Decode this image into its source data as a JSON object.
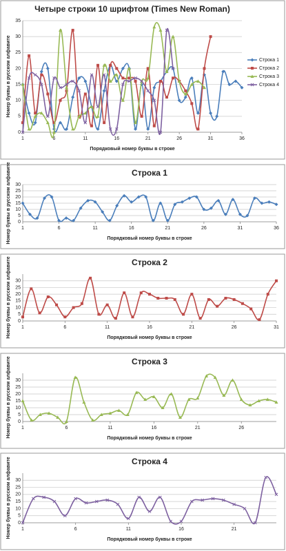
{
  "chart_data": [
    {
      "type": "line",
      "title": "Четыре строки 10 шрифтом (Times New Roman)",
      "x_label": "Порядковый номер буквы в строке",
      "y_label": "Номер буквы в русском алфавите",
      "xlim": [
        1,
        36
      ],
      "xticks": [
        1,
        6,
        11,
        16,
        21,
        26,
        31,
        36
      ],
      "ylim": [
        0,
        35
      ],
      "yticks": [
        0,
        5,
        10,
        15,
        20,
        25,
        30,
        35
      ],
      "grid": true,
      "legend": "right",
      "series": [
        {
          "name": "Строка 1",
          "color": "#4a7ebb",
          "marker": "diamond",
          "x": [
            1,
            2,
            3,
            4,
            5,
            6,
            7,
            8,
            9,
            10,
            11,
            12,
            13,
            14,
            15,
            16,
            17,
            18,
            19,
            20,
            21,
            22,
            23,
            24,
            25,
            26,
            27,
            28,
            29,
            30,
            31,
            32,
            33,
            34,
            35,
            36
          ],
          "values": [
            15,
            6,
            3,
            19,
            20,
            1,
            3,
            1,
            11,
            17,
            16,
            8,
            1,
            13,
            21,
            16,
            20,
            20,
            1,
            15,
            1,
            14,
            16,
            19,
            20,
            10,
            11,
            17,
            6,
            18,
            6,
            5,
            19,
            15,
            16,
            14
          ]
        },
        {
          "name": "Строка 2",
          "color": "#be4b48",
          "marker": "square",
          "x": [
            1,
            2,
            3,
            4,
            5,
            6,
            7,
            8,
            9,
            10,
            11,
            12,
            13,
            14,
            15,
            16,
            17,
            18,
            19,
            20,
            21,
            22,
            23,
            24,
            25,
            26,
            27,
            28,
            29,
            30,
            31
          ],
          "values": [
            3,
            24,
            6,
            18,
            12,
            3,
            10,
            13,
            32,
            5,
            12,
            2,
            21,
            3,
            21,
            20,
            17,
            17,
            16,
            5,
            20,
            2,
            16,
            11,
            17,
            16,
            13,
            9,
            1,
            20,
            30
          ]
        },
        {
          "name": "Строка 3",
          "color": "#98b954",
          "marker": "triangle",
          "x": [
            1,
            2,
            3,
            4,
            5,
            6,
            7,
            8,
            9,
            10,
            11,
            12,
            13,
            14,
            15,
            16,
            17,
            18,
            19,
            20,
            21,
            22,
            23,
            24,
            25,
            26,
            27,
            28,
            29,
            30
          ],
          "values": [
            15,
            1,
            5,
            6,
            3,
            0,
            32,
            14,
            1,
            5,
            6,
            8,
            5,
            21,
            16,
            18,
            10,
            20,
            3,
            16,
            17,
            33,
            32,
            19,
            30,
            16,
            12,
            15,
            16,
            14
          ]
        },
        {
          "name": "Строка 4",
          "color": "#7d60a0",
          "marker": "cross",
          "x": [
            1,
            2,
            3,
            4,
            5,
            6,
            7,
            8,
            9,
            10,
            11,
            12,
            13,
            14,
            15,
            16,
            17,
            18,
            19,
            20,
            21,
            22,
            23,
            24,
            25
          ],
          "values": [
            0,
            17,
            18,
            15,
            5,
            17,
            14,
            15,
            16,
            13,
            3,
            18,
            8,
            18,
            1,
            1,
            15,
            16,
            17,
            16,
            13,
            10,
            0,
            32,
            20
          ]
        }
      ]
    },
    {
      "type": "line",
      "title": "Строка 1",
      "x_label": "Порядковый номер буквы в строке",
      "y_label": "Номер буквы в русском алфавите",
      "xlim": [
        1,
        36
      ],
      "xticks": [
        1,
        6,
        11,
        16,
        21,
        26,
        31,
        36
      ],
      "ylim": [
        0,
        30
      ],
      "yticks": [
        0,
        5,
        10,
        15,
        20,
        25,
        30
      ],
      "grid": true,
      "color": "#4a7ebb",
      "marker": "diamond",
      "x": [
        1,
        2,
        3,
        4,
        5,
        6,
        7,
        8,
        9,
        10,
        11,
        12,
        13,
        14,
        15,
        16,
        17,
        18,
        19,
        20,
        21,
        22,
        23,
        24,
        25,
        26,
        27,
        28,
        29,
        30,
        31,
        32,
        33,
        34,
        35,
        36
      ],
      "values": [
        15,
        6,
        3,
        19,
        20,
        1,
        3,
        1,
        11,
        17,
        16,
        8,
        1,
        13,
        21,
        16,
        20,
        20,
        1,
        15,
        1,
        14,
        16,
        19,
        20,
        10,
        11,
        17,
        6,
        18,
        6,
        5,
        19,
        15,
        16,
        14
      ]
    },
    {
      "type": "line",
      "title": "Строка 2",
      "x_label": "Порядковый номер буквы в строке",
      "y_label": "Номер буквы в русском алфавите",
      "xlim": [
        1,
        31
      ],
      "xticks": [
        1,
        6,
        11,
        16,
        21,
        26,
        31
      ],
      "ylim": [
        0,
        35
      ],
      "yticks": [
        0,
        5,
        10,
        15,
        20,
        25,
        30
      ],
      "grid": true,
      "color": "#be4b48",
      "marker": "square",
      "x": [
        1,
        2,
        3,
        4,
        5,
        6,
        7,
        8,
        9,
        10,
        11,
        12,
        13,
        14,
        15,
        16,
        17,
        18,
        19,
        20,
        21,
        22,
        23,
        24,
        25,
        26,
        27,
        28,
        29,
        30,
        31
      ],
      "values": [
        3,
        24,
        6,
        18,
        12,
        3,
        10,
        13,
        32,
        5,
        12,
        2,
        21,
        3,
        21,
        20,
        17,
        17,
        16,
        5,
        20,
        2,
        16,
        11,
        17,
        16,
        13,
        9,
        1,
        20,
        30
      ]
    },
    {
      "type": "line",
      "title": "Строка 3",
      "x_label": "Порядковый номер буквы в строке",
      "y_label": "Номер буквы в русском алфавите",
      "xlim": [
        1,
        30
      ],
      "xticks": [
        1,
        6,
        11,
        16,
        21,
        26
      ],
      "ylim": [
        0,
        35
      ],
      "yticks": [
        0,
        5,
        10,
        15,
        20,
        25,
        30
      ],
      "grid": true,
      "color": "#98b954",
      "marker": "triangle",
      "x": [
        1,
        2,
        3,
        4,
        5,
        6,
        7,
        8,
        9,
        10,
        11,
        12,
        13,
        14,
        15,
        16,
        17,
        18,
        19,
        20,
        21,
        22,
        23,
        24,
        25,
        26,
        27,
        28,
        29,
        30
      ],
      "values": [
        15,
        1,
        5,
        6,
        3,
        0,
        32,
        14,
        1,
        5,
        6,
        8,
        5,
        21,
        16,
        18,
        10,
        20,
        3,
        16,
        17,
        33,
        32,
        19,
        30,
        16,
        12,
        15,
        16,
        14
      ]
    },
    {
      "type": "line",
      "title": "Строка 4",
      "x_label": "Порядковый номер буквы в строке",
      "y_label": "Номер буквы в русском алфавите",
      "xlim": [
        1,
        25
      ],
      "xticks": [
        1,
        6,
        11,
        16,
        21
      ],
      "ylim": [
        0,
        35
      ],
      "yticks": [
        0,
        5,
        10,
        15,
        20,
        25,
        30
      ],
      "grid": true,
      "color": "#7d60a0",
      "marker": "cross",
      "x": [
        1,
        2,
        3,
        4,
        5,
        6,
        7,
        8,
        9,
        10,
        11,
        12,
        13,
        14,
        15,
        16,
        17,
        18,
        19,
        20,
        21,
        22,
        23,
        24,
        25
      ],
      "values": [
        0,
        17,
        18,
        15,
        5,
        17,
        14,
        15,
        16,
        13,
        3,
        18,
        8,
        18,
        1,
        1,
        15,
        16,
        17,
        16,
        13,
        10,
        0,
        32,
        20
      ]
    }
  ]
}
